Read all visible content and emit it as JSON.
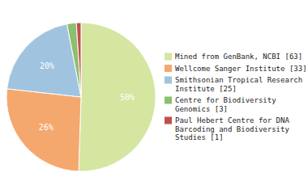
{
  "chart_data": {
    "type": "pie",
    "categories": [
      "Mined from GenBank, NCBI [63]",
      "Wellcome Sanger Institute [33]",
      "Smithsonian Tropical Research\nInstitute [25]",
      "Centre for Biodiversity\nGenomics [3]",
      "Paul Hebert Centre for DNA\nBarcoding and Biodiversity\nStudies [1]"
    ],
    "values": [
      50,
      26,
      20,
      2,
      1
    ],
    "value_labels": [
      "50%",
      "26%",
      "20%",
      null,
      null
    ],
    "colors": [
      "#d4e6a0",
      "#f5a86e",
      "#a0c4e0",
      "#8cbf6e",
      "#c0504d"
    ],
    "legend": "right"
  }
}
